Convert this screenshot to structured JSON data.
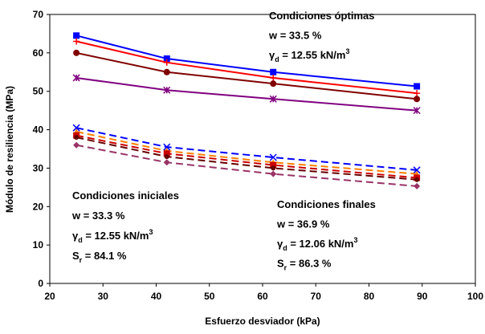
{
  "chart_data": {
    "type": "line",
    "xlabel": "Esfuerzo desviador (kPa)",
    "ylabel": "Módulo de resiliencia (MPa)",
    "x": [
      25,
      42,
      62,
      89
    ],
    "xlim": [
      20,
      100
    ],
    "xticks": [
      20,
      30,
      40,
      50,
      60,
      70,
      80,
      90,
      100
    ],
    "ylim": [
      0,
      70
    ],
    "yticks": [
      0,
      10,
      20,
      30,
      40,
      50,
      60,
      70
    ],
    "grid": false,
    "series": [
      {
        "color": "#0000ff",
        "marker": "square",
        "dash": false,
        "values": [
          64.5,
          58.5,
          55,
          51.3
        ]
      },
      {
        "color": "#ff0000",
        "marker": "plus",
        "dash": false,
        "values": [
          63,
          57.5,
          53.5,
          49.5
        ]
      },
      {
        "color": "#800000",
        "marker": "circle",
        "dash": false,
        "values": [
          60,
          55,
          52,
          48
        ]
      },
      {
        "color": "#800080",
        "marker": "star",
        "dash": false,
        "values": [
          53.5,
          50.3,
          48,
          45
        ]
      },
      {
        "color": "#0000ff",
        "marker": "x",
        "dash": true,
        "values": [
          40.5,
          35.5,
          32.8,
          29.5
        ]
      },
      {
        "color": "#ff8000",
        "marker": "triangle",
        "dash": true,
        "values": [
          39.5,
          34.5,
          31.5,
          28.5
        ]
      },
      {
        "color": "#cc0000",
        "marker": "square",
        "dash": true,
        "values": [
          38.5,
          33.8,
          30.8,
          27.5
        ]
      },
      {
        "color": "#660000",
        "marker": "none",
        "dash": true,
        "values": [
          38,
          33,
          30,
          27
        ]
      },
      {
        "color": "#993366",
        "marker": "diamond",
        "dash": true,
        "values": [
          36,
          31.5,
          28.5,
          25.3
        ]
      }
    ],
    "annotations": [
      {
        "lines": [
          [
            {
              "text": "Condiciones óptimas"
            }
          ],
          [
            {
              "text": "w = 33.5 %"
            }
          ],
          [
            {
              "text": "γ"
            },
            {
              "text": "d",
              "sub": true
            },
            {
              "text": " = 12.55 kN/m"
            },
            {
              "text": "3",
              "sup": true
            }
          ]
        ]
      },
      {
        "lines": [
          [
            {
              "text": "Condiciones iniciales"
            }
          ],
          [
            {
              "text": "w = 33.3 %"
            }
          ],
          [
            {
              "text": "γ"
            },
            {
              "text": "d",
              "sub": true
            },
            {
              "text": " = 12.55 kN/m"
            },
            {
              "text": "3",
              "sup": true
            }
          ],
          [
            {
              "text": "S"
            },
            {
              "text": "r",
              "sub": true
            },
            {
              "text": " = 84.1 %"
            }
          ]
        ]
      },
      {
        "lines": [
          [
            {
              "text": "Condiciones finales"
            }
          ],
          [
            {
              "text": "w = 36.9 %"
            }
          ],
          [
            {
              "text": "γ"
            },
            {
              "text": "d",
              "sub": true
            },
            {
              "text": " = 12.06 kN/m"
            },
            {
              "text": "3",
              "sup": true
            }
          ],
          [
            {
              "text": "S"
            },
            {
              "text": "r",
              "sub": true
            },
            {
              "text": " = 86.3 %"
            }
          ]
        ]
      }
    ]
  }
}
